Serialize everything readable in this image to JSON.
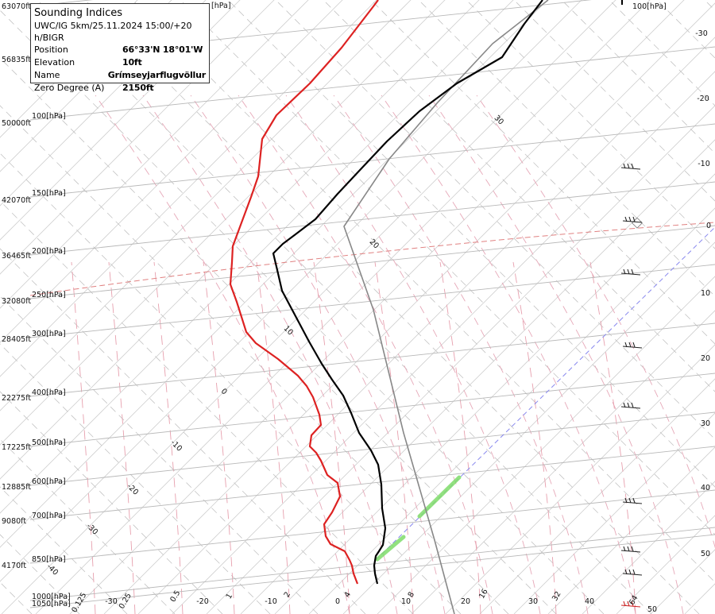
{
  "info_box": {
    "title": "Sounding Indices",
    "model_line": "UWC/IG 5km/25.11.2024 15:00/+20 h/BIGR",
    "rows": [
      {
        "label": "Position",
        "value": "66°33'N 18°01'W"
      },
      {
        "label": "Elevation",
        "value": "10ft"
      },
      {
        "label": "Name",
        "value": "Grímseyjarflugvöllur"
      },
      {
        "label": "Zero Degree (A)",
        "value": "2150ft"
      }
    ]
  },
  "chart_data": {
    "type": "line",
    "title": "",
    "xlabel": "",
    "ylabel": "",
    "pressure_levels": [
      {
        "p": "1050",
        "alt": "",
        "label": "1050[hPa]"
      },
      {
        "p": "1000",
        "alt": "",
        "label": "1000[hPa]"
      },
      {
        "p": "850",
        "alt": "4170ft",
        "label": "850[hPa]"
      },
      {
        "p": "700",
        "alt": "9080ft",
        "label": "700[hPa]"
      },
      {
        "p": "600",
        "alt": "12885ft",
        "label": "600[hPa]"
      },
      {
        "p": "500",
        "alt": "17225ft",
        "label": "500[hPa]"
      },
      {
        "p": "400",
        "alt": "22275ft",
        "label": "400[hPa]"
      },
      {
        "p": "300",
        "alt": "28405ft",
        "label": "300[hPa]"
      },
      {
        "p": "250",
        "alt": "32080ft",
        "label": "250[hPa]"
      },
      {
        "p": "200",
        "alt": "36465ft",
        "label": "200[hPa]"
      },
      {
        "p": "150",
        "alt": "42070ft",
        "label": "150[hPa]"
      },
      {
        "p": "100",
        "alt": "50000ft",
        "label": "100[hPa]"
      },
      {
        "p": "",
        "alt": "56835ft",
        "label": ""
      },
      {
        "p": "",
        "alt": "63070ft",
        "label": "[hPa]"
      }
    ],
    "top_right_label": "100[hPa]",
    "x_ticks": [
      "-30",
      "-20",
      "-10",
      "0",
      "10",
      "20",
      "30",
      "40",
      "50"
    ],
    "mixing_ratio_labels": [
      "0.125",
      "0.25",
      "0.5",
      "1",
      "2",
      "4",
      "8",
      "16",
      "32",
      "64"
    ],
    "right_axis_ticks": [
      "-30",
      "-20",
      "-10",
      "0",
      "10",
      "20",
      "30",
      "40",
      "50"
    ],
    "skew_labels": [
      "30",
      "20",
      "10",
      "0",
      "-10",
      "-20",
      "-30",
      "-40"
    ],
    "series": [
      {
        "name": "",
        "color": "#000000",
        "variable": "temperature"
      },
      {
        "name": "",
        "color": "#dd2222",
        "variable": "dewpoint"
      },
      {
        "name": "",
        "color": "#888888",
        "variable": "parcel"
      }
    ],
    "colors": {
      "temperature": "#000000",
      "dewpoint": "#dd2222",
      "parcel": "#888888",
      "isobar": "#b8b8b8",
      "freezing_level": "#e08080",
      "lcl_line": "#8888ee",
      "cloud": "#7fdc6a"
    }
  }
}
